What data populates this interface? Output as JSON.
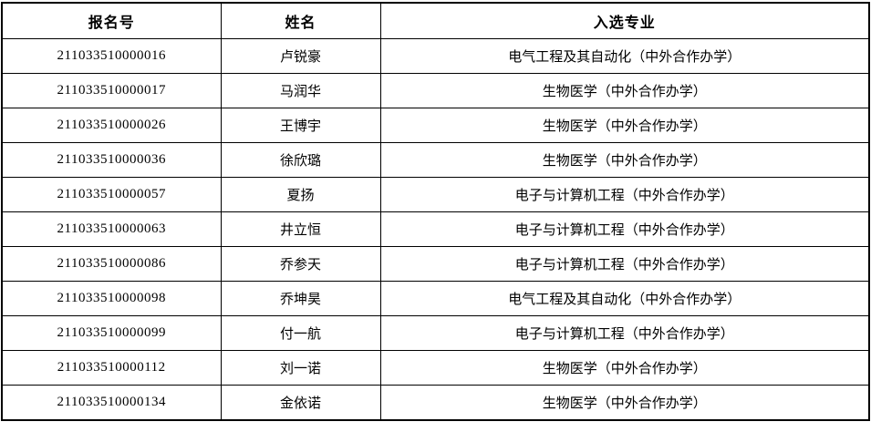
{
  "page": {
    "background_color": "#ffffff",
    "border_color": "#000000",
    "text_color": "#000000"
  },
  "table": {
    "columns": [
      {
        "key": "reg_no",
        "label": "报名号"
      },
      {
        "key": "name",
        "label": "姓名"
      },
      {
        "key": "major",
        "label": "入选专业"
      }
    ],
    "rows": [
      {
        "reg_no": "211033510000016",
        "name": "卢锐豪",
        "major": "电气工程及其自动化（中外合作办学）"
      },
      {
        "reg_no": "211033510000017",
        "name": "马润华",
        "major": "生物医学（中外合作办学）"
      },
      {
        "reg_no": "211033510000026",
        "name": "王博宇",
        "major": "生物医学（中外合作办学）"
      },
      {
        "reg_no": "211033510000036",
        "name": "徐欣璐",
        "major": "生物医学（中外合作办学）"
      },
      {
        "reg_no": "211033510000057",
        "name": "夏扬",
        "major": "电子与计算机工程（中外合作办学）"
      },
      {
        "reg_no": "211033510000063",
        "name": "井立恒",
        "major": "电子与计算机工程（中外合作办学）"
      },
      {
        "reg_no": "211033510000086",
        "name": "乔参天",
        "major": "电子与计算机工程（中外合作办学）"
      },
      {
        "reg_no": "211033510000098",
        "name": "乔坤昊",
        "major": "电气工程及其自动化（中外合作办学）"
      },
      {
        "reg_no": "211033510000099",
        "name": "付一航",
        "major": "电子与计算机工程（中外合作办学）"
      },
      {
        "reg_no": "211033510000112",
        "name": "刘一诺",
        "major": "生物医学（中外合作办学）"
      },
      {
        "reg_no": "211033510000134",
        "name": "金依诺",
        "major": "生物医学（中外合作办学）"
      }
    ]
  }
}
